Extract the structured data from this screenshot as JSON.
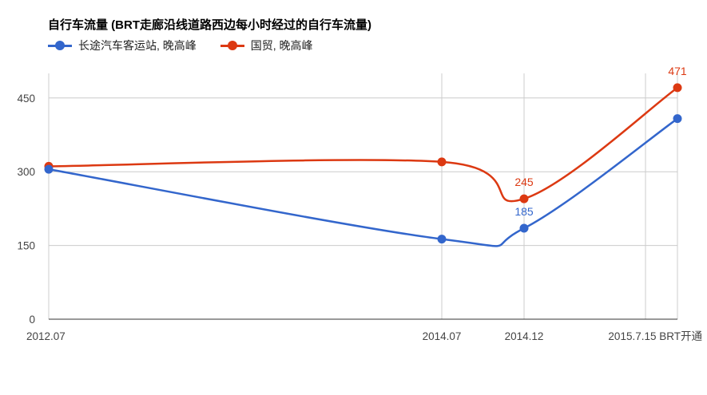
{
  "chart_data": {
    "type": "line",
    "title": "自行车流量 (BRT走廊沿线道路西边每小时经过的自行车流量)",
    "categories": [
      "2012.07",
      "2014.07",
      "2014.12",
      "2015.7.15 BRT开通"
    ],
    "ylim": [
      0,
      450
    ],
    "yticks": [
      0,
      150,
      300,
      450
    ],
    "grid": true,
    "legend_position": "top-left",
    "series": [
      {
        "name": "长途汽车客运站, 晚高峰",
        "color": "#3366cc",
        "values": [
          305,
          163,
          185,
          408
        ],
        "labels": [
          "",
          "",
          "185",
          ""
        ]
      },
      {
        "name": "国贸, 晚高峰",
        "color": "#dc3912",
        "values": [
          311,
          320,
          245,
          471
        ],
        "labels": [
          "",
          "",
          "245",
          "471"
        ]
      }
    ]
  }
}
